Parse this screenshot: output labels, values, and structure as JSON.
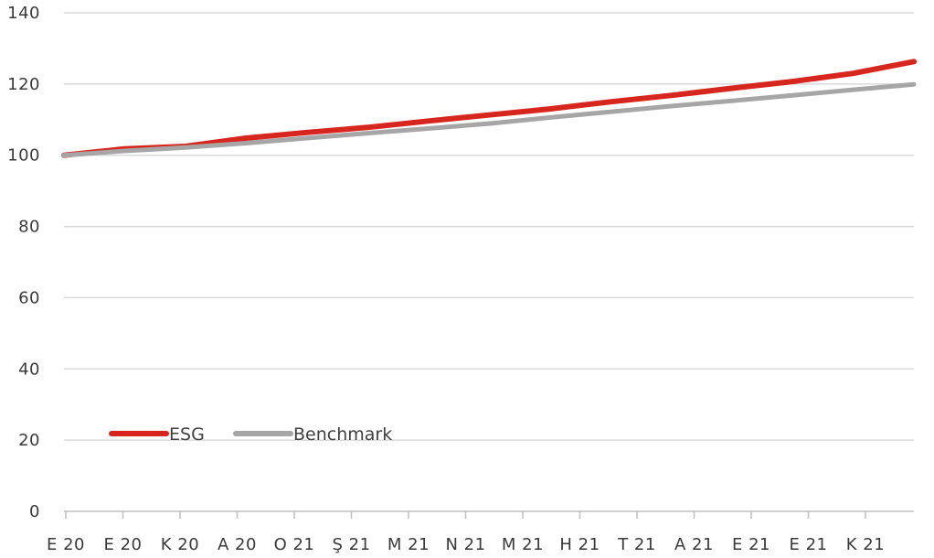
{
  "chart_data": {
    "type": "line",
    "title": "",
    "xlabel": "",
    "ylabel": "",
    "ylim": [
      0,
      140
    ],
    "y_ticks": [
      "0",
      "20",
      "40",
      "60",
      "80",
      "100",
      "120",
      "140"
    ],
    "categories": [
      "E 20",
      "E 20",
      "K 20",
      "A 20",
      "O 21",
      "Ş 21",
      "M 21",
      "N 21",
      "M 21",
      "H 21",
      "T 21",
      "A 21",
      "E 21",
      "E 21",
      "K 21"
    ],
    "grid": true,
    "legend": "bottom-left",
    "series": [
      {
        "name": "ESG",
        "color": "#d7261e",
        "values": [
          100,
          101.8,
          102.5,
          104.8,
          106.4,
          107.8,
          109.6,
          111.3,
          113.0,
          115.0,
          116.8,
          118.8,
          120.7,
          123.0,
          126.3
        ]
      },
      {
        "name": "Benchmark",
        "color": "#a6a6a6",
        "values": [
          100,
          101.2,
          102.2,
          103.4,
          104.8,
          106.2,
          107.5,
          108.9,
          110.6,
          112.2,
          113.8,
          115.3,
          116.8,
          118.4,
          119.9
        ]
      }
    ]
  }
}
